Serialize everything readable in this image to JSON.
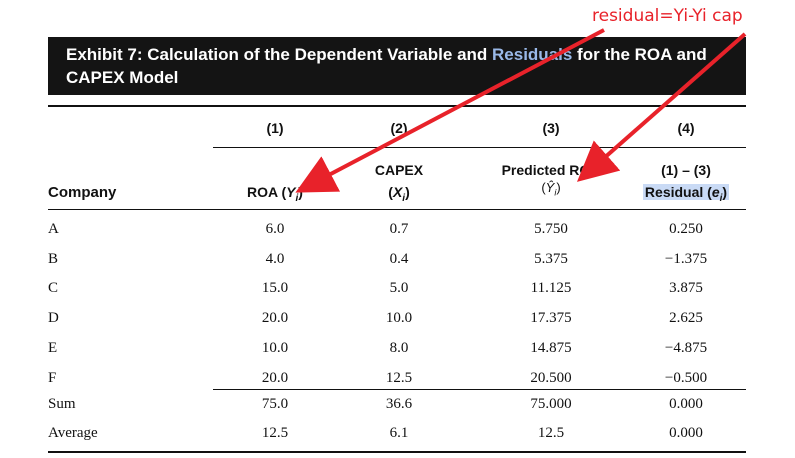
{
  "annotation": "residual=Yi-Yi cap",
  "title": {
    "pre": "Exhibit 7: Calculation of the Dependent Variable and ",
    "highlight": "Residuals",
    "post": " for the ROA and CAPEX Model"
  },
  "col_numbers": [
    "(1)",
    "(2)",
    "(3)",
    "(4)"
  ],
  "headers": {
    "company": "Company",
    "roa": "ROA (",
    "roa_sym": "Y",
    "roa_sub": "i",
    "roa_close": ")",
    "capex": "CAPEX",
    "capex_open": "(",
    "capex_sym": "X",
    "capex_sub": "i",
    "capex_close": ")",
    "pred": "Predicted ROA",
    "pred_open": "(",
    "pred_sym": "Ŷ",
    "pred_sub": "i",
    "pred_close": ")",
    "formula": "(1) – (3)",
    "resid": "Residual (",
    "resid_sym": "e",
    "resid_sub": "i",
    "resid_close": ")"
  },
  "rows": [
    {
      "company": "A",
      "roa": "6.0",
      "capex": "0.7",
      "pred": "5.750",
      "resid": "0.250"
    },
    {
      "company": "B",
      "roa": "4.0",
      "capex": "0.4",
      "pred": "5.375",
      "resid": "−1.375"
    },
    {
      "company": "C",
      "roa": "15.0",
      "capex": "5.0",
      "pred": "11.125",
      "resid": "3.875"
    },
    {
      "company": "D",
      "roa": "20.0",
      "capex": "10.0",
      "pred": "17.375",
      "resid": "2.625"
    },
    {
      "company": "E",
      "roa": "10.0",
      "capex": "8.0",
      "pred": "14.875",
      "resid": "−4.875"
    },
    {
      "company": "F",
      "roa": "20.0",
      "capex": "12.5",
      "pred": "20.500",
      "resid": "−0.500"
    }
  ],
  "summary": [
    {
      "label": "Sum",
      "roa": "75.0",
      "capex": "36.6",
      "pred": "75.000",
      "resid": "0.000"
    },
    {
      "label": "Average",
      "roa": "12.5",
      "capex": "6.1",
      "pred": "12.5",
      "resid": "0.000"
    }
  ],
  "colors": {
    "annotation": "#e8222a",
    "title_bg": "#141414",
    "title_highlight": "#9ab9e8",
    "residual_highlight": "#c9daf5"
  }
}
